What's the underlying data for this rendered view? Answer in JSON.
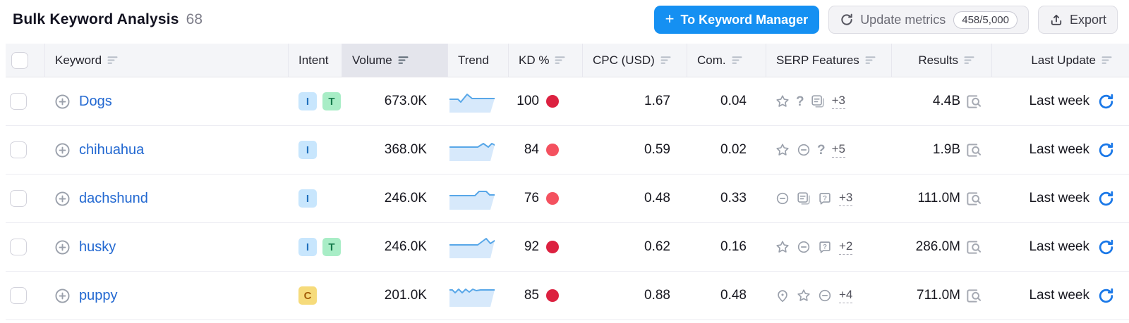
{
  "page": {
    "title": "Bulk Keyword Analysis",
    "count": "68"
  },
  "controls": {
    "to_keyword_manager": {
      "plus": "+",
      "label": "To Keyword Manager"
    },
    "update_metrics": {
      "label": "Update metrics",
      "quota": "458/5,000"
    },
    "export": {
      "label": "Export"
    }
  },
  "table": {
    "columns": [
      "Keyword",
      "Intent",
      "Volume",
      "Trend",
      "KD %",
      "CPC (USD)",
      "Com.",
      "SERP Features",
      "Results",
      "Last Update"
    ],
    "sorted_by": "Volume",
    "rows": [
      {
        "keyword": "Dogs",
        "intents": [
          {
            "label": "I",
            "type": "informational"
          },
          {
            "label": "T",
            "type": "transactional"
          }
        ],
        "volume": "673.0K",
        "trend": [
          [
            0,
            15
          ],
          [
            12,
            15
          ],
          [
            16,
            19
          ],
          [
            25,
            8
          ],
          [
            32,
            14
          ],
          [
            64,
            14
          ]
        ],
        "kd": "100",
        "kd_color": "#dc2140",
        "cpc": "1.67",
        "com": "0.04",
        "serp_features": [
          "star",
          "question",
          "list"
        ],
        "serp_more": "+3",
        "results": "4.4B",
        "last_update": "Last week"
      },
      {
        "keyword": "chihuahua",
        "intents": [
          {
            "label": "I",
            "type": "informational"
          }
        ],
        "volume": "368.0K",
        "trend": [
          [
            0,
            14
          ],
          [
            40,
            14
          ],
          [
            48,
            9
          ],
          [
            55,
            14
          ],
          [
            60,
            9
          ],
          [
            64,
            11
          ]
        ],
        "kd": "84",
        "kd_color": "#f4515f",
        "cpc": "0.59",
        "com": "0.02",
        "serp_features": [
          "star",
          "link",
          "question"
        ],
        "serp_more": "+5",
        "results": "1.9B",
        "last_update": "Last week"
      },
      {
        "keyword": "dachshund",
        "intents": [
          {
            "label": "I",
            "type": "informational"
          }
        ],
        "volume": "246.0K",
        "trend": [
          [
            0,
            14
          ],
          [
            36,
            14
          ],
          [
            42,
            8
          ],
          [
            52,
            8
          ],
          [
            57,
            13
          ],
          [
            64,
            13
          ]
        ],
        "kd": "76",
        "kd_color": "#f4515f",
        "cpc": "0.48",
        "com": "0.33",
        "serp_features": [
          "link",
          "list",
          "question-box"
        ],
        "serp_more": "+3",
        "results": "111.0M",
        "last_update": "Last week"
      },
      {
        "keyword": "husky",
        "intents": [
          {
            "label": "I",
            "type": "informational"
          },
          {
            "label": "T",
            "type": "transactional"
          }
        ],
        "volume": "246.0K",
        "trend": [
          [
            0,
            15
          ],
          [
            40,
            15
          ],
          [
            52,
            6
          ],
          [
            58,
            13
          ],
          [
            64,
            9
          ]
        ],
        "kd": "92",
        "kd_color": "#dc2140",
        "cpc": "0.62",
        "com": "0.16",
        "serp_features": [
          "star",
          "link",
          "question-box"
        ],
        "serp_more": "+2",
        "results": "286.0M",
        "last_update": "Last week"
      },
      {
        "keyword": "puppy",
        "intents": [
          {
            "label": "C",
            "type": "commercial"
          }
        ],
        "volume": "201.0K",
        "trend": [
          [
            0,
            10
          ],
          [
            4,
            10
          ],
          [
            8,
            14
          ],
          [
            13,
            9
          ],
          [
            18,
            14
          ],
          [
            23,
            9
          ],
          [
            28,
            13
          ],
          [
            33,
            9
          ],
          [
            38,
            11
          ],
          [
            44,
            10
          ],
          [
            64,
            10
          ]
        ],
        "kd": "85",
        "kd_color": "#dc2140",
        "cpc": "0.88",
        "com": "0.48",
        "serp_features": [
          "location",
          "star",
          "link"
        ],
        "serp_more": "+4",
        "results": "711.0M",
        "last_update": "Last week"
      }
    ]
  },
  "colors": {
    "primary_button": "#1590f2",
    "keyword_link": "#2268d1",
    "trend_line": "#58a7e8",
    "trend_fill": "#d7e9fb",
    "row_refresh_blue": "#1a78e8",
    "header_bg": "#f4f5f8",
    "sorted_header_bg": "#e4e5ec"
  }
}
